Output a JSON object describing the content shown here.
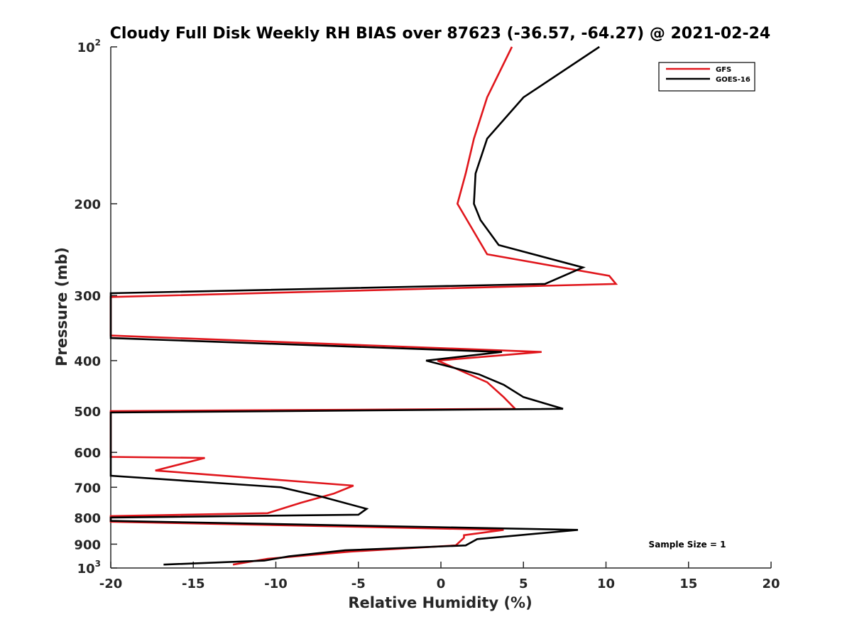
{
  "chart_data": {
    "type": "line",
    "title": "Cloudy Full Disk Weekly RH BIAS over 87623 (-36.57, -64.27) @ 2021-02-24",
    "xlabel": "Relative Humidity (%)",
    "ylabel": "Pressure (mb)",
    "xlim": [
      -20,
      20
    ],
    "ylim": [
      100,
      1000
    ],
    "y_scale": "log",
    "y_reversed": true,
    "grid": false,
    "legend_position": "top-right",
    "annotation": "Sample Size = 1",
    "x_ticks": [
      "-20",
      "-15",
      "-10",
      "-5",
      "0",
      "5",
      "10",
      "15",
      "20"
    ],
    "y_ticks": [
      {
        "value": 100,
        "base": "10",
        "exp": "2"
      },
      {
        "value": 200,
        "label": "200"
      },
      {
        "value": 300,
        "label": "300"
      },
      {
        "value": 400,
        "label": "400"
      },
      {
        "value": 500,
        "label": "500"
      },
      {
        "value": 600,
        "label": "600"
      },
      {
        "value": 700,
        "label": "700"
      },
      {
        "value": 800,
        "label": "800"
      },
      {
        "value": 900,
        "label": "900"
      },
      {
        "value": 1000,
        "base": "10",
        "exp": "3"
      }
    ],
    "series": [
      {
        "name": "GFS",
        "color": "#e0161c",
        "points": [
          [
            4.3,
            100
          ],
          [
            2.8,
            125
          ],
          [
            2.0,
            150
          ],
          [
            1.5,
            175
          ],
          [
            1.0,
            200
          ],
          [
            2.8,
            250
          ],
          [
            10.2,
            275
          ],
          [
            10.6,
            285
          ],
          [
            -20,
            302
          ],
          [
            -20,
            358
          ],
          [
            6.1,
            385
          ],
          [
            -0.2,
            400
          ],
          [
            2.8,
            440
          ],
          [
            3.8,
            470
          ],
          [
            4.5,
            495
          ],
          [
            -20,
            500
          ],
          [
            -20,
            612
          ],
          [
            -14.3,
            615
          ],
          [
            -17.3,
            650
          ],
          [
            -5.3,
            695
          ],
          [
            -6.5,
            720
          ],
          [
            -8.5,
            750
          ],
          [
            -10.5,
            785
          ],
          [
            -20,
            795
          ],
          [
            -20,
            815
          ],
          [
            3.8,
            845
          ],
          [
            1.4,
            865
          ],
          [
            1.4,
            875
          ],
          [
            0.9,
            905
          ],
          [
            -5.5,
            930
          ],
          [
            -10.5,
            960
          ],
          [
            -12.6,
            985
          ]
        ]
      },
      {
        "name": "GOES-16",
        "color": "#000000",
        "points": [
          [
            9.6,
            100
          ],
          [
            5.0,
            125
          ],
          [
            2.8,
            150
          ],
          [
            2.1,
            175
          ],
          [
            2.0,
            200
          ],
          [
            2.4,
            215
          ],
          [
            3.5,
            240
          ],
          [
            8.6,
            265
          ],
          [
            6.3,
            285
          ],
          [
            -20,
            297
          ],
          [
            -20,
            362
          ],
          [
            3.7,
            385
          ],
          [
            -0.9,
            400
          ],
          [
            2.3,
            425
          ],
          [
            3.8,
            445
          ],
          [
            5.0,
            470
          ],
          [
            7.4,
            495
          ],
          [
            -20,
            503
          ],
          [
            -20,
            665
          ],
          [
            -9.7,
            700
          ],
          [
            -7.2,
            730
          ],
          [
            -4.5,
            770
          ],
          [
            -5.0,
            790
          ],
          [
            -20,
            800
          ],
          [
            -20,
            812
          ],
          [
            8.3,
            845
          ],
          [
            2.2,
            880
          ],
          [
            1.5,
            905
          ],
          [
            -5.8,
            925
          ],
          [
            -9.2,
            950
          ],
          [
            -10.7,
            968
          ],
          [
            -16.8,
            985
          ]
        ]
      }
    ]
  }
}
